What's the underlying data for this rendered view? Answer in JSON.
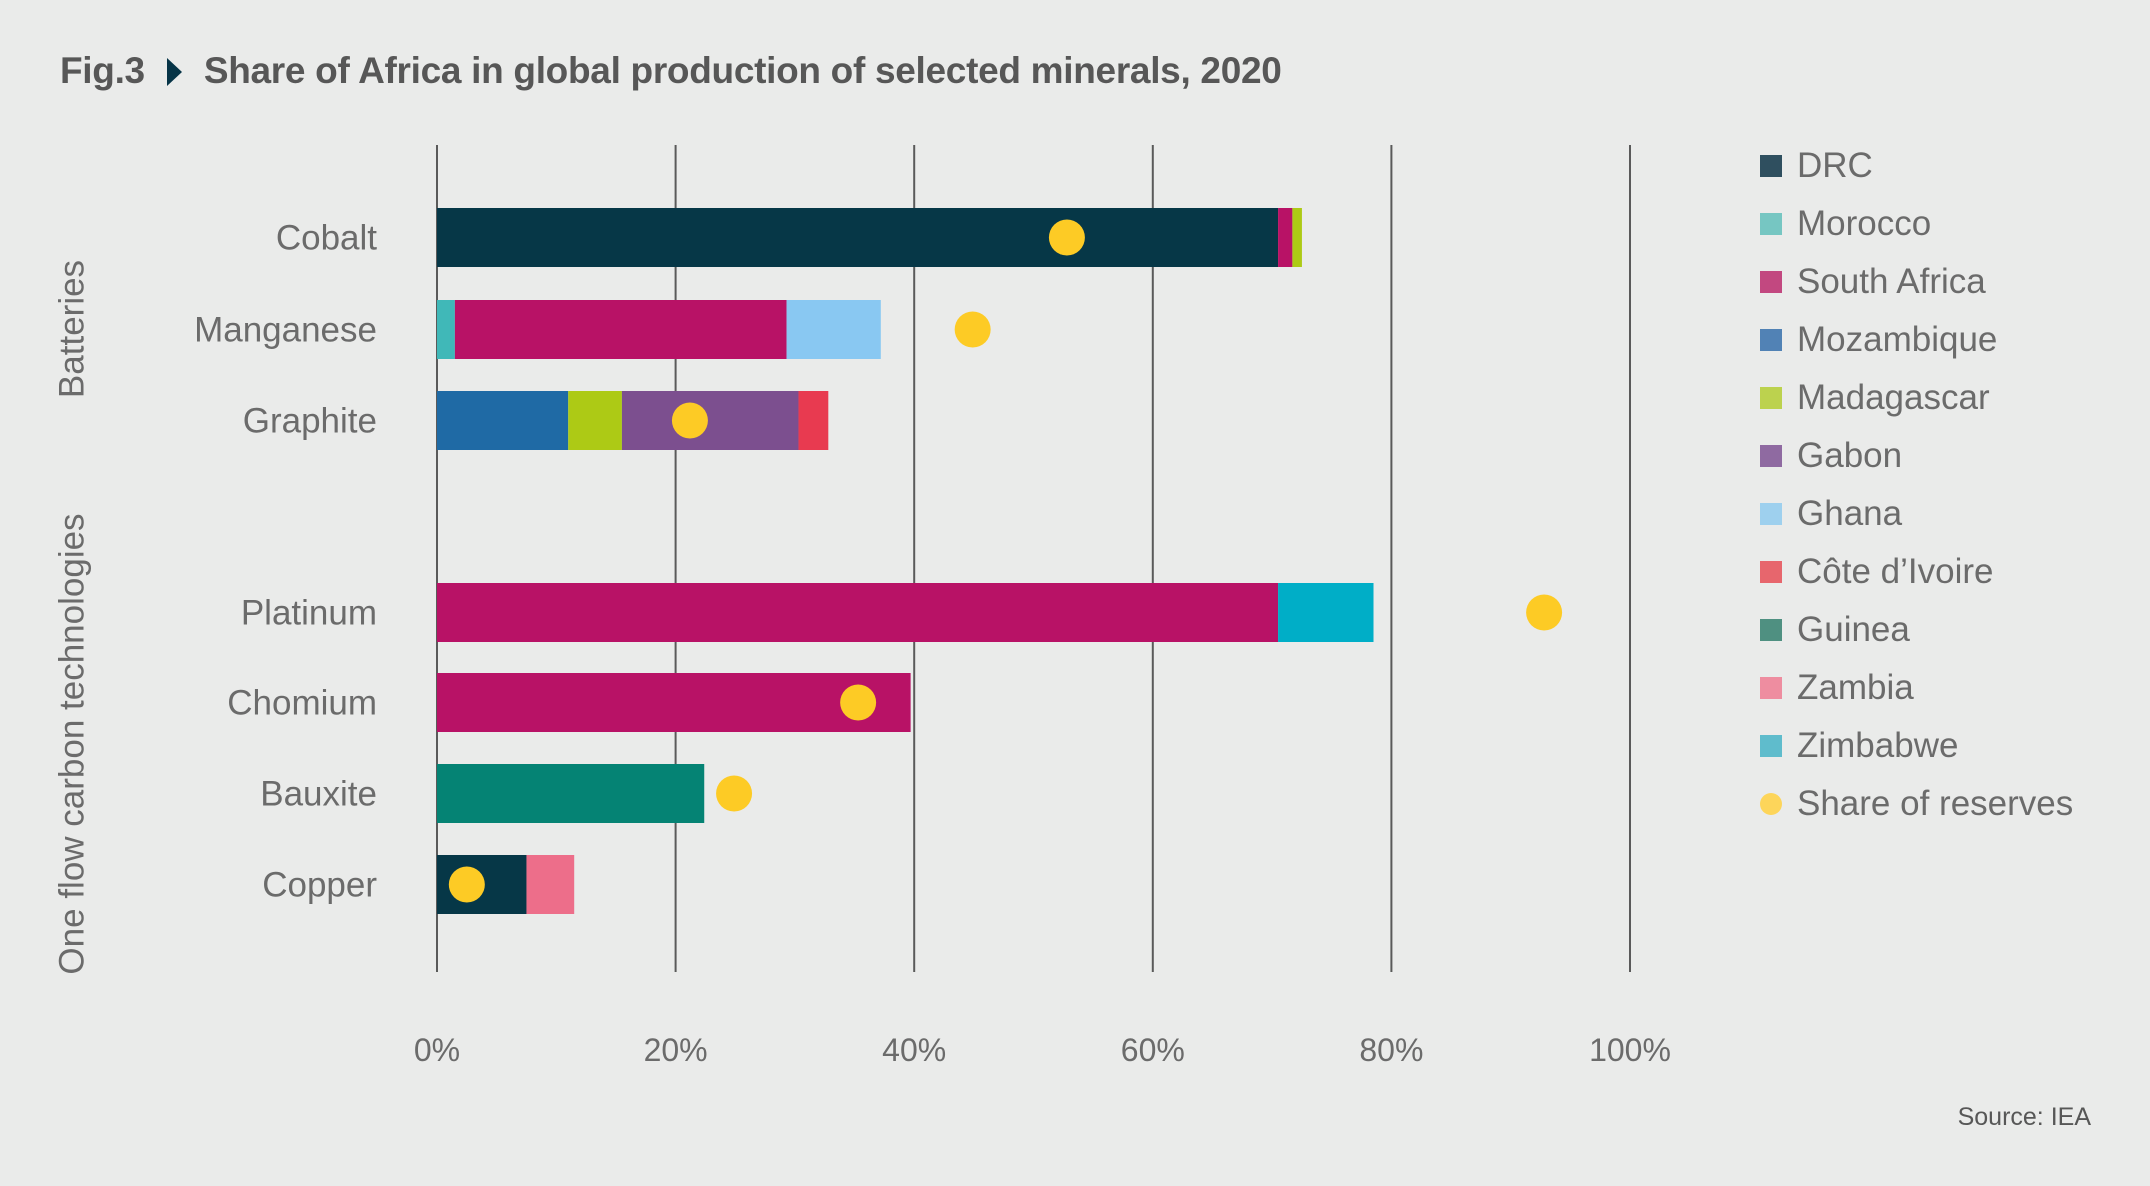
{
  "figure": {
    "fig_label": "Fig.3",
    "title": "Share of Africa in global production of selected minerals, 2020",
    "source": "Source: IEA",
    "accent_color": "#063447"
  },
  "chart_data": {
    "type": "bar",
    "orientation": "horizontal",
    "stacked": true,
    "title": "Share of Africa in global production of selected minerals, 2020",
    "xlabel": "",
    "ylabel": "",
    "xlim": [
      0,
      100
    ],
    "x_unit": "%",
    "grid": true,
    "legend_position": "right",
    "x_ticks": [
      "0%",
      "20%",
      "40%",
      "60%",
      "80%",
      "100%"
    ],
    "groups": [
      {
        "name": "Batteries",
        "categories": [
          "Cobalt",
          "Manganese",
          "Graphite"
        ]
      },
      {
        "name": "One flow carbon technologies",
        "categories": [
          "Platinum",
          "Chomium",
          "Bauxite",
          "Copper"
        ]
      }
    ],
    "categories": [
      "Cobalt",
      "Manganese",
      "Graphite",
      "Platinum",
      "Chomium",
      "Bauxite",
      "Copper"
    ],
    "series": [
      {
        "name": "DRC",
        "color": "#063747",
        "legend_color": "#2f4f5f",
        "values": [
          70.5,
          0,
          0,
          0,
          0,
          0,
          7.5
        ]
      },
      {
        "name": "Morocco",
        "color": "#40b8b8",
        "legend_color": "#76c6c2",
        "values": [
          0,
          1.5,
          0,
          0,
          0,
          0,
          0
        ]
      },
      {
        "name": "South Africa",
        "color": "#b81266",
        "legend_color": "#c24880",
        "values": [
          1.2,
          27.8,
          0,
          70.5,
          39.7,
          0,
          0
        ]
      },
      {
        "name": "Mozambique",
        "color": "#1f6aa5",
        "legend_color": "#5182b5",
        "values": [
          0,
          0,
          11.0,
          0,
          0,
          0,
          0
        ]
      },
      {
        "name": "Madagascar",
        "color": "#adca15",
        "legend_color": "#bcd24e",
        "values": [
          0.8,
          0,
          4.5,
          0,
          0,
          0,
          0
        ]
      },
      {
        "name": "Gabon",
        "color": "#7c4f8f",
        "legend_color": "#8f6aa1",
        "values": [
          0,
          0,
          14.8,
          0,
          0,
          0,
          0
        ]
      },
      {
        "name": "Ghana",
        "color": "#89c8f2",
        "legend_color": "#9ed0ee",
        "values": [
          0,
          7.9,
          0,
          0,
          0,
          0,
          0
        ]
      },
      {
        "name": "Côte d’Ivoire",
        "color": "#e83a50",
        "legend_color": "#e7666d",
        "values": [
          0,
          0,
          2.5,
          0,
          0,
          0,
          0
        ]
      },
      {
        "name": "Guinea",
        "color": "#058374",
        "legend_color": "#4f9081",
        "values": [
          0,
          0,
          0,
          0,
          0,
          22.4,
          0
        ]
      },
      {
        "name": "Zambia",
        "color": "#ed6e8a",
        "legend_color": "#ee8da0",
        "values": [
          0,
          0,
          0,
          0,
          0,
          0,
          4.0
        ]
      },
      {
        "name": "Zimbabwe",
        "color": "#00aec7",
        "legend_color": "#5fbccc",
        "values": [
          0,
          0,
          0,
          8.0,
          0,
          0,
          0
        ]
      }
    ],
    "reserves": {
      "name": "Share of reserves",
      "color": "#fdcb25",
      "legend_color": "#fdd55a",
      "values": [
        52.8,
        44.9,
        21.2,
        92.8,
        35.3,
        24.9,
        2.5
      ]
    }
  }
}
